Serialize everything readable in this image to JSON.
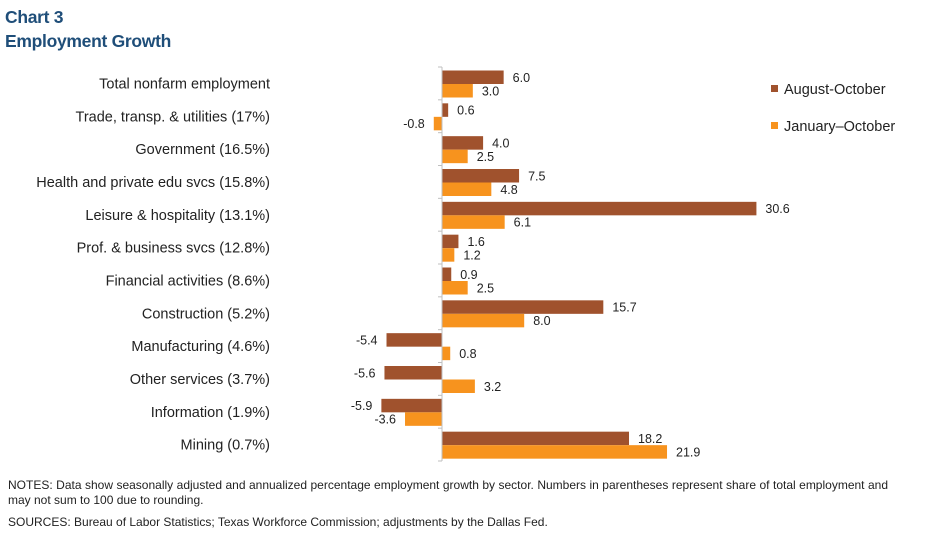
{
  "chart_number": "Chart 3",
  "title": "Employment Growth",
  "chart_data": {
    "type": "bar",
    "orientation": "horizontal",
    "categories": [
      "Total nonfarm employment",
      "Trade, transp. & utilities (17%)",
      "Government (16.5%)",
      "Health and private edu svcs (15.8%)",
      "Leisure & hospitality (13.1%)",
      "Prof. & business svcs (12.8%)",
      "Financial activities (8.6%)",
      "Construction (5.2%)",
      "Manufacturing (4.6%)",
      "Other services (3.7%)",
      "Information (1.9%)",
      "Mining (0.7%)"
    ],
    "series": [
      {
        "name": "August-October",
        "color": "#a0522d",
        "values": [
          6.0,
          0.6,
          4.0,
          7.5,
          30.6,
          1.6,
          0.9,
          15.7,
          -5.4,
          -5.6,
          -5.9,
          18.2
        ],
        "labels": [
          "6.0",
          "0.6",
          "4.0",
          "7.5",
          "30.6",
          "1.6",
          "0.9",
          "15.7",
          "-5.4",
          "-5.6",
          "-5.9",
          "18.2"
        ]
      },
      {
        "name": "January–October",
        "color": "#f7931e",
        "values": [
          3.0,
          -0.8,
          2.5,
          4.8,
          6.1,
          1.2,
          2.5,
          8.0,
          0.8,
          3.2,
          -3.6,
          21.9
        ],
        "labels": [
          "3.0",
          "-0.8",
          "2.5",
          "4.8",
          "6.1",
          "1.2",
          "2.5",
          "8.0",
          "0.8",
          "3.2",
          "-3.6",
          "21.9"
        ]
      }
    ],
    "xlim": [
      -10,
      35
    ],
    "grid": false,
    "legend": "top-right"
  },
  "notes": "NOTES: Data show seasonally adjusted and annualized percentage employment growth by sector. Numbers in parentheses represent share of total employment and may not sum to 100 due to rounding.",
  "sources": "SOURCES: Bureau of Labor Statistics; Texas Workforce Commission; adjustments by the Dallas Fed."
}
